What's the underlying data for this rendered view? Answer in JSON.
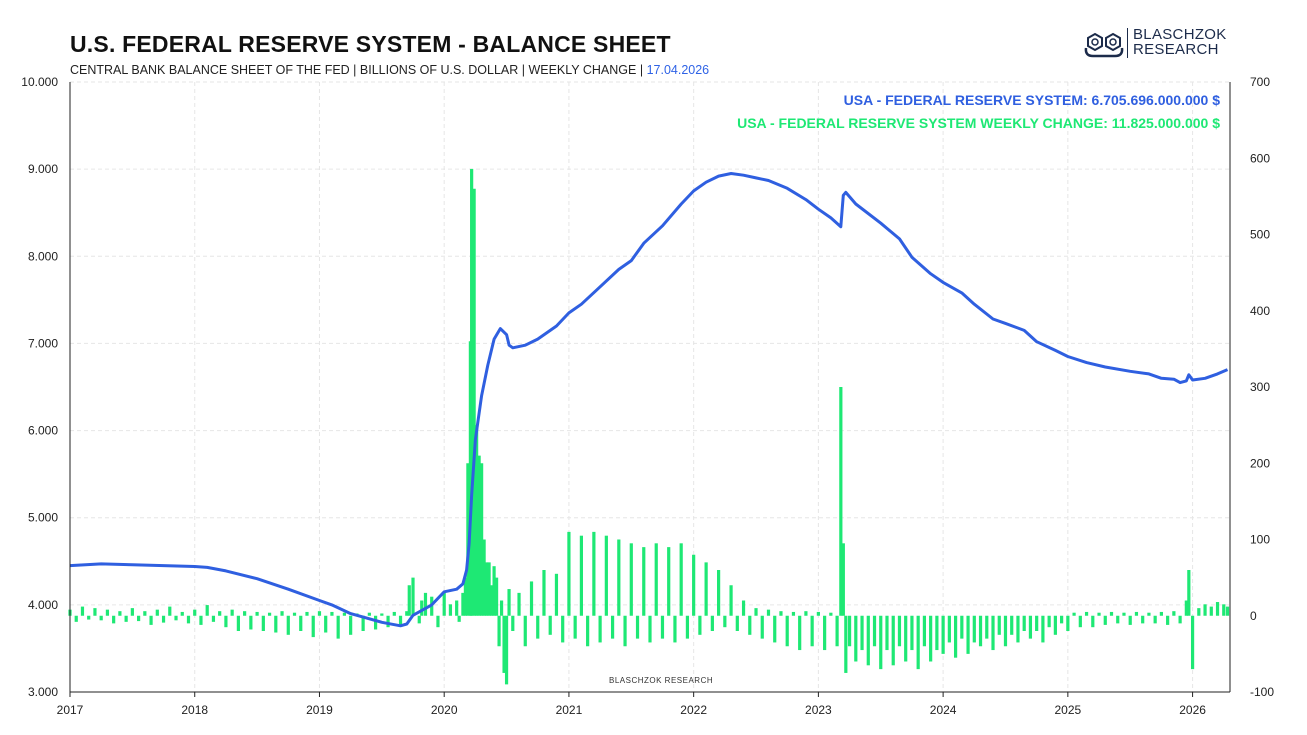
{
  "header": {
    "title": "U.S. FEDERAL RESERVE SYSTEM - BALANCE SHEET",
    "subtitle": "CENTRAL BANK BALANCE SHEET OF THE FED | BILLIONS OF U.S. DOLLAR | WEEKLY CHANGE |",
    "date": "17.04.2026"
  },
  "logo": {
    "line1": "BLASCHZOK",
    "line2": "RESEARCH",
    "icon": "cube-gears-logo-icon"
  },
  "watermark": "BLASCHZOK  RESEARCH",
  "colors": {
    "balance_line": "#2f5fe0",
    "weekly_bars": "#1ee874",
    "grid": "#e6e6e6",
    "axis": "#222222"
  },
  "chart_data": {
    "type": "line+bar",
    "title": "U.S. FEDERAL RESERVE SYSTEM - BALANCE SHEET",
    "legend_placement": "top-right",
    "grid": true,
    "x_ticks": [
      "2017",
      "2018",
      "2019",
      "2020",
      "2021",
      "2022",
      "2023",
      "2024",
      "2025",
      "2026"
    ],
    "xlim": [
      2017.0,
      2026.3
    ],
    "y_left": {
      "ticks": [
        "3.000",
        "4.000",
        "5.000",
        "6.000",
        "7.000",
        "8.000",
        "9.000",
        "10.000"
      ],
      "ylim": [
        3000,
        10000
      ]
    },
    "y_right": {
      "ticks": [
        "-100",
        "0",
        "100",
        "200",
        "300",
        "400",
        "500",
        "600",
        "700"
      ],
      "ylim": [
        -100,
        700
      ]
    },
    "series": [
      {
        "name": "USA - FEDERAL RESERVE SYSTEM: 6.705.696.000.000 $",
        "type": "line",
        "axis": "left",
        "points": [
          [
            2017.0,
            4450
          ],
          [
            2017.25,
            4470
          ],
          [
            2017.5,
            4460
          ],
          [
            2017.75,
            4450
          ],
          [
            2018.0,
            4440
          ],
          [
            2018.1,
            4430
          ],
          [
            2018.25,
            4390
          ],
          [
            2018.5,
            4300
          ],
          [
            2018.75,
            4180
          ],
          [
            2019.0,
            4050
          ],
          [
            2019.1,
            4000
          ],
          [
            2019.25,
            3900
          ],
          [
            2019.5,
            3800
          ],
          [
            2019.65,
            3760
          ],
          [
            2019.7,
            3780
          ],
          [
            2019.75,
            3880
          ],
          [
            2019.9,
            4000
          ],
          [
            2020.0,
            4150
          ],
          [
            2020.1,
            4180
          ],
          [
            2020.15,
            4240
          ],
          [
            2020.18,
            4400
          ],
          [
            2020.2,
            4700
          ],
          [
            2020.22,
            5250
          ],
          [
            2020.25,
            5900
          ],
          [
            2020.3,
            6400
          ],
          [
            2020.35,
            6750
          ],
          [
            2020.4,
            7050
          ],
          [
            2020.45,
            7170
          ],
          [
            2020.5,
            7100
          ],
          [
            2020.52,
            6980
          ],
          [
            2020.55,
            6950
          ],
          [
            2020.65,
            6980
          ],
          [
            2020.75,
            7050
          ],
          [
            2020.9,
            7200
          ],
          [
            2021.0,
            7350
          ],
          [
            2021.1,
            7450
          ],
          [
            2021.25,
            7650
          ],
          [
            2021.4,
            7850
          ],
          [
            2021.5,
            7950
          ],
          [
            2021.6,
            8150
          ],
          [
            2021.75,
            8350
          ],
          [
            2021.9,
            8600
          ],
          [
            2022.0,
            8750
          ],
          [
            2022.1,
            8850
          ],
          [
            2022.2,
            8920
          ],
          [
            2022.3,
            8950
          ],
          [
            2022.4,
            8930
          ],
          [
            2022.5,
            8900
          ],
          [
            2022.6,
            8870
          ],
          [
            2022.75,
            8780
          ],
          [
            2022.9,
            8650
          ],
          [
            2023.0,
            8540
          ],
          [
            2023.1,
            8440
          ],
          [
            2023.18,
            8340
          ],
          [
            2023.2,
            8700
          ],
          [
            2023.22,
            8733
          ],
          [
            2023.3,
            8600
          ],
          [
            2023.5,
            8380
          ],
          [
            2023.65,
            8200
          ],
          [
            2023.75,
            7990
          ],
          [
            2023.9,
            7800
          ],
          [
            2024.0,
            7700
          ],
          [
            2024.15,
            7580
          ],
          [
            2024.25,
            7450
          ],
          [
            2024.4,
            7280
          ],
          [
            2024.5,
            7230
          ],
          [
            2024.65,
            7150
          ],
          [
            2024.75,
            7020
          ],
          [
            2024.9,
            6920
          ],
          [
            2025.0,
            6850
          ],
          [
            2025.15,
            6780
          ],
          [
            2025.3,
            6730
          ],
          [
            2025.5,
            6680
          ],
          [
            2025.65,
            6650
          ],
          [
            2025.75,
            6600
          ],
          [
            2025.85,
            6590
          ],
          [
            2025.9,
            6550
          ],
          [
            2025.95,
            6570
          ],
          [
            2025.97,
            6640
          ],
          [
            2026.0,
            6580
          ],
          [
            2026.1,
            6600
          ],
          [
            2026.2,
            6650
          ],
          [
            2026.28,
            6700
          ]
        ]
      },
      {
        "name": "USA - FEDERAL RESERVE SYSTEM WEEKLY CHANGE: 11.825.000.000 $",
        "type": "bar",
        "axis": "right",
        "points": [
          [
            2017.0,
            8
          ],
          [
            2017.05,
            -8
          ],
          [
            2017.1,
            12
          ],
          [
            2017.15,
            -5
          ],
          [
            2017.2,
            10
          ],
          [
            2017.25,
            -6
          ],
          [
            2017.3,
            8
          ],
          [
            2017.35,
            -10
          ],
          [
            2017.4,
            6
          ],
          [
            2017.45,
            -8
          ],
          [
            2017.5,
            10
          ],
          [
            2017.55,
            -7
          ],
          [
            2017.6,
            6
          ],
          [
            2017.65,
            -12
          ],
          [
            2017.7,
            8
          ],
          [
            2017.75,
            -9
          ],
          [
            2017.8,
            12
          ],
          [
            2017.85,
            -6
          ],
          [
            2017.9,
            5
          ],
          [
            2017.95,
            -10
          ],
          [
            2018.0,
            8
          ],
          [
            2018.05,
            -12
          ],
          [
            2018.1,
            14
          ],
          [
            2018.15,
            -8
          ],
          [
            2018.2,
            6
          ],
          [
            2018.25,
            -15
          ],
          [
            2018.3,
            8
          ],
          [
            2018.35,
            -20
          ],
          [
            2018.4,
            6
          ],
          [
            2018.45,
            -18
          ],
          [
            2018.5,
            5
          ],
          [
            2018.55,
            -20
          ],
          [
            2018.6,
            4
          ],
          [
            2018.65,
            -22
          ],
          [
            2018.7,
            6
          ],
          [
            2018.75,
            -25
          ],
          [
            2018.8,
            4
          ],
          [
            2018.85,
            -20
          ],
          [
            2018.9,
            5
          ],
          [
            2018.95,
            -28
          ],
          [
            2019.0,
            6
          ],
          [
            2019.05,
            -22
          ],
          [
            2019.1,
            5
          ],
          [
            2019.15,
            -30
          ],
          [
            2019.2,
            4
          ],
          [
            2019.25,
            -25
          ],
          [
            2019.3,
            3
          ],
          [
            2019.35,
            -20
          ],
          [
            2019.4,
            4
          ],
          [
            2019.45,
            -18
          ],
          [
            2019.5,
            3
          ],
          [
            2019.55,
            -15
          ],
          [
            2019.6,
            5
          ],
          [
            2019.65,
            -12
          ],
          [
            2019.7,
            6
          ],
          [
            2019.72,
            40
          ],
          [
            2019.75,
            50
          ],
          [
            2019.8,
            -10
          ],
          [
            2019.82,
            20
          ],
          [
            2019.85,
            30
          ],
          [
            2019.9,
            25
          ],
          [
            2019.95,
            -15
          ],
          [
            2020.0,
            30
          ],
          [
            2020.05,
            15
          ],
          [
            2020.1,
            20
          ],
          [
            2020.12,
            -8
          ],
          [
            2020.15,
            30
          ],
          [
            2020.17,
            50
          ],
          [
            2020.19,
            200
          ],
          [
            2020.21,
            360
          ],
          [
            2020.22,
            586
          ],
          [
            2020.24,
            560
          ],
          [
            2020.26,
            250
          ],
          [
            2020.28,
            210
          ],
          [
            2020.3,
            200
          ],
          [
            2020.32,
            100
          ],
          [
            2020.34,
            70
          ],
          [
            2020.36,
            70
          ],
          [
            2020.38,
            40
          ],
          [
            2020.4,
            65
          ],
          [
            2020.42,
            50
          ],
          [
            2020.44,
            -40
          ],
          [
            2020.46,
            20
          ],
          [
            2020.48,
            -75
          ],
          [
            2020.5,
            -90
          ],
          [
            2020.52,
            35
          ],
          [
            2020.55,
            -20
          ],
          [
            2020.6,
            30
          ],
          [
            2020.65,
            -40
          ],
          [
            2020.7,
            45
          ],
          [
            2020.75,
            -30
          ],
          [
            2020.8,
            60
          ],
          [
            2020.85,
            -25
          ],
          [
            2020.9,
            55
          ],
          [
            2020.95,
            -35
          ],
          [
            2021.0,
            110
          ],
          [
            2021.05,
            -30
          ],
          [
            2021.1,
            105
          ],
          [
            2021.15,
            -40
          ],
          [
            2021.2,
            110
          ],
          [
            2021.25,
            -35
          ],
          [
            2021.3,
            105
          ],
          [
            2021.35,
            -30
          ],
          [
            2021.4,
            100
          ],
          [
            2021.45,
            -40
          ],
          [
            2021.5,
            95
          ],
          [
            2021.55,
            -30
          ],
          [
            2021.6,
            90
          ],
          [
            2021.65,
            -35
          ],
          [
            2021.7,
            95
          ],
          [
            2021.75,
            -30
          ],
          [
            2021.8,
            90
          ],
          [
            2021.85,
            -35
          ],
          [
            2021.9,
            95
          ],
          [
            2021.95,
            -30
          ],
          [
            2022.0,
            80
          ],
          [
            2022.05,
            -25
          ],
          [
            2022.1,
            70
          ],
          [
            2022.15,
            -20
          ],
          [
            2022.2,
            60
          ],
          [
            2022.25,
            -15
          ],
          [
            2022.3,
            40
          ],
          [
            2022.35,
            -20
          ],
          [
            2022.4,
            20
          ],
          [
            2022.45,
            -25
          ],
          [
            2022.5,
            10
          ],
          [
            2022.55,
            -30
          ],
          [
            2022.6,
            8
          ],
          [
            2022.65,
            -35
          ],
          [
            2022.7,
            6
          ],
          [
            2022.75,
            -40
          ],
          [
            2022.8,
            5
          ],
          [
            2022.85,
            -45
          ],
          [
            2022.9,
            6
          ],
          [
            2022.95,
            -40
          ],
          [
            2023.0,
            5
          ],
          [
            2023.05,
            -45
          ],
          [
            2023.1,
            4
          ],
          [
            2023.15,
            -40
          ],
          [
            2023.18,
            300
          ],
          [
            2023.2,
            95
          ],
          [
            2023.22,
            -75
          ],
          [
            2023.25,
            -40
          ],
          [
            2023.3,
            -60
          ],
          [
            2023.35,
            -45
          ],
          [
            2023.4,
            -65
          ],
          [
            2023.45,
            -40
          ],
          [
            2023.5,
            -70
          ],
          [
            2023.55,
            -45
          ],
          [
            2023.6,
            -65
          ],
          [
            2023.65,
            -40
          ],
          [
            2023.7,
            -60
          ],
          [
            2023.75,
            -45
          ],
          [
            2023.8,
            -70
          ],
          [
            2023.85,
            -40
          ],
          [
            2023.9,
            -60
          ],
          [
            2023.95,
            -45
          ],
          [
            2024.0,
            -50
          ],
          [
            2024.05,
            -35
          ],
          [
            2024.1,
            -55
          ],
          [
            2024.15,
            -30
          ],
          [
            2024.2,
            -50
          ],
          [
            2024.25,
            -35
          ],
          [
            2024.3,
            -40
          ],
          [
            2024.35,
            -30
          ],
          [
            2024.4,
            -45
          ],
          [
            2024.45,
            -25
          ],
          [
            2024.5,
            -40
          ],
          [
            2024.55,
            -25
          ],
          [
            2024.6,
            -35
          ],
          [
            2024.65,
            -20
          ],
          [
            2024.7,
            -30
          ],
          [
            2024.75,
            -20
          ],
          [
            2024.8,
            -35
          ],
          [
            2024.85,
            -15
          ],
          [
            2024.9,
            -25
          ],
          [
            2024.95,
            -10
          ],
          [
            2025.0,
            -20
          ],
          [
            2025.05,
            4
          ],
          [
            2025.1,
            -15
          ],
          [
            2025.15,
            5
          ],
          [
            2025.2,
            -15
          ],
          [
            2025.25,
            4
          ],
          [
            2025.3,
            -12
          ],
          [
            2025.35,
            5
          ],
          [
            2025.4,
            -10
          ],
          [
            2025.45,
            4
          ],
          [
            2025.5,
            -12
          ],
          [
            2025.55,
            5
          ],
          [
            2025.6,
            -10
          ],
          [
            2025.65,
            4
          ],
          [
            2025.7,
            -10
          ],
          [
            2025.75,
            5
          ],
          [
            2025.8,
            -12
          ],
          [
            2025.85,
            6
          ],
          [
            2025.9,
            -10
          ],
          [
            2025.95,
            20
          ],
          [
            2025.97,
            60
          ],
          [
            2026.0,
            -70
          ],
          [
            2026.05,
            10
          ],
          [
            2026.1,
            15
          ],
          [
            2026.15,
            12
          ],
          [
            2026.2,
            18
          ],
          [
            2026.25,
            15
          ],
          [
            2026.28,
            12
          ]
        ]
      }
    ]
  }
}
